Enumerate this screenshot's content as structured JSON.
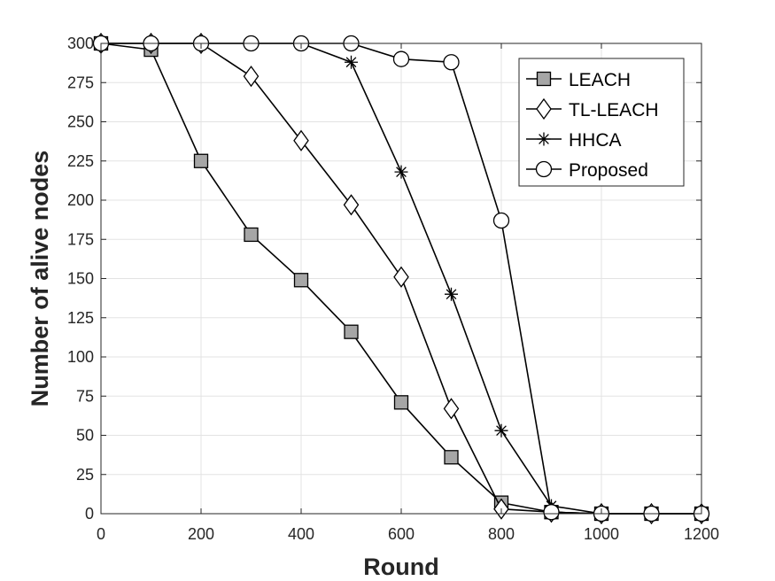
{
  "chart_data": {
    "type": "line",
    "xlabel": "Round",
    "ylabel": "Number of alive nodes",
    "xlim": [
      0,
      1200
    ],
    "ylim": [
      0,
      300
    ],
    "xticks": [
      0,
      200,
      400,
      600,
      800,
      1000,
      1200
    ],
    "yticks": [
      0,
      25,
      50,
      75,
      100,
      125,
      150,
      175,
      200,
      225,
      250,
      275,
      300
    ],
    "grid": true,
    "legend_position": "top-right",
    "x": [
      0,
      100,
      200,
      300,
      400,
      500,
      600,
      700,
      800,
      900,
      1000,
      1100,
      1200
    ],
    "series": [
      {
        "name": "LEACH",
        "marker": "square",
        "values": [
          300,
          296,
          225,
          178,
          149,
          116,
          71,
          36,
          7,
          1,
          0,
          0,
          0
        ]
      },
      {
        "name": "TL-LEACH",
        "marker": "diamond",
        "values": [
          300,
          300,
          300,
          279,
          238,
          197,
          151,
          67,
          3,
          1,
          0,
          0,
          0
        ]
      },
      {
        "name": "HHCA",
        "marker": "star",
        "values": [
          300,
          300,
          300,
          300,
          300,
          288,
          218,
          140,
          53,
          5,
          0,
          0,
          0
        ]
      },
      {
        "name": "Proposed",
        "marker": "circle",
        "values": [
          300,
          300,
          300,
          300,
          300,
          300,
          290,
          288,
          187,
          1,
          0,
          0,
          0
        ]
      }
    ]
  }
}
